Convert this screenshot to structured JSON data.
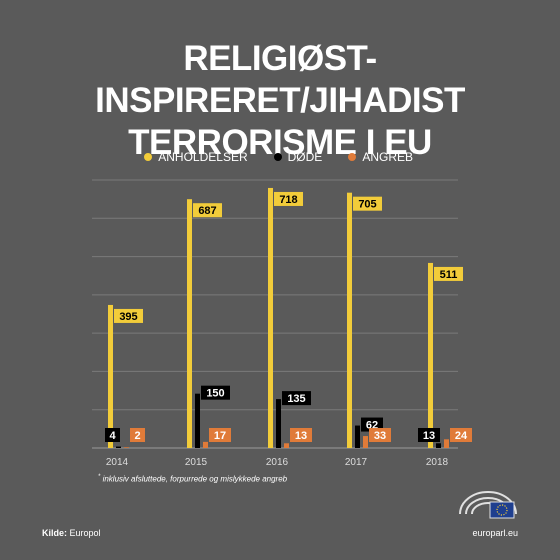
{
  "header": {
    "title_line1": "RELIGIØST-INSPIRERET/JIHADIST",
    "title_line2": "TERRORISME I EU"
  },
  "colors": {
    "background": "#5a5a5a",
    "anholdelser": "#f2cc3a",
    "doede": "#000000",
    "angreb": "#e07b39",
    "grid": "#7a7a7a"
  },
  "chart_data": {
    "type": "bar",
    "categories": [
      "2014",
      "2015",
      "2016",
      "2017",
      "2018"
    ],
    "series": [
      {
        "name": "ANHOLDELSER",
        "values": [
          395,
          687,
          718,
          705,
          511
        ]
      },
      {
        "name": "DØDE",
        "values": [
          4,
          150,
          135,
          62,
          13
        ]
      },
      {
        "name": "ANGREB",
        "values": [
          2,
          17,
          13,
          33,
          24
        ]
      }
    ],
    "ylim": [
      0,
      740
    ],
    "grid": true,
    "legend_position": "top-center"
  },
  "legend": {
    "anholdelser": "ANHOLDELSER",
    "doede": "DØDE",
    "angreb": "ANGREB",
    "angreb_mark": "*"
  },
  "footnote": {
    "mark": "*",
    "text": "inklusiv afsluttede, forpurrede og mislykkede angreb"
  },
  "footer": {
    "source_label": "Kilde:",
    "source_value": "Europol",
    "site": "europarl.eu"
  },
  "icons": {
    "logo": "european-parliament-logo-icon"
  }
}
